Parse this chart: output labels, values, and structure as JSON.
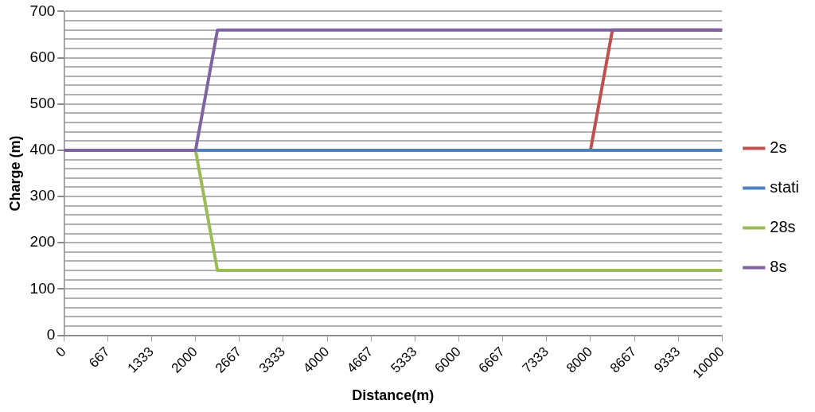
{
  "chart_data": {
    "type": "line",
    "xlabel": "Distance(m)",
    "ylabel": "Charge (m)",
    "xlim": [
      0,
      10000
    ],
    "xticks": [
      0,
      {
        "value": 666.67,
        "label": "667"
      },
      {
        "value": 1333.33,
        "label": "1333"
      },
      2000,
      {
        "value": 2666.67,
        "label": "2667"
      },
      {
        "value": 3333.33,
        "label": "3333"
      },
      4000,
      {
        "value": 4666.67,
        "label": "4667"
      },
      {
        "value": 5333.33,
        "label": "5333"
      },
      6000,
      {
        "value": 6666.67,
        "label": "6667"
      },
      {
        "value": 7333.33,
        "label": "7333"
      },
      8000,
      {
        "value": 8666.67,
        "label": "8667"
      },
      {
        "value": 9333.33,
        "label": "9333"
      },
      10000
    ],
    "ylim": [
      0,
      700
    ],
    "yticks": [
      0,
      {
        "value": 20,
        "label": null
      },
      {
        "value": 40,
        "label": null
      },
      {
        "value": 60,
        "label": null
      },
      {
        "value": 80,
        "label": null
      },
      100,
      {
        "value": 120,
        "label": null
      },
      {
        "value": 140,
        "label": null
      },
      {
        "value": 160,
        "label": null
      },
      {
        "value": 180,
        "label": null
      },
      200,
      {
        "value": 220,
        "label": null
      },
      {
        "value": 240,
        "label": null
      },
      {
        "value": 260,
        "label": null
      },
      {
        "value": 280,
        "label": null
      },
      300,
      {
        "value": 320,
        "label": null
      },
      {
        "value": 340,
        "label": null
      },
      {
        "value": 360,
        "label": null
      },
      {
        "value": 380,
        "label": null
      },
      400,
      {
        "value": 420,
        "label": null
      },
      {
        "value": 440,
        "label": null
      },
      {
        "value": 460,
        "label": null
      },
      {
        "value": 480,
        "label": null
      },
      500,
      {
        "value": 520,
        "label": null
      },
      {
        "value": 540,
        "label": null
      },
      {
        "value": 560,
        "label": null
      },
      {
        "value": 580,
        "label": null
      },
      600,
      {
        "value": 620,
        "label": null
      },
      {
        "value": 640,
        "label": null
      },
      {
        "value": 660,
        "label": null
      },
      {
        "value": 680,
        "label": null
      },
      700
    ],
    "series": [
      {
        "name": "2s",
        "color": "#c0504d",
        "x": [
          8000,
          8333,
          10000
        ],
        "values": [
          400,
          660,
          660
        ]
      },
      {
        "name": "stati",
        "color": "#4f81bd",
        "x": [
          0,
          10000
        ],
        "values": [
          400,
          400
        ]
      },
      {
        "name": "28s",
        "color": "#9bbb59",
        "x": [
          0,
          2000,
          2333,
          10000
        ],
        "values": [
          400,
          400,
          140,
          140
        ]
      },
      {
        "name": "8s",
        "color": "#8064a2",
        "x": [
          0,
          2000,
          2333,
          10000
        ],
        "values": [
          400,
          400,
          660,
          660
        ]
      }
    ],
    "grid": "y",
    "legend": "right",
    "marker": "none",
    "line_style": "solid"
  }
}
